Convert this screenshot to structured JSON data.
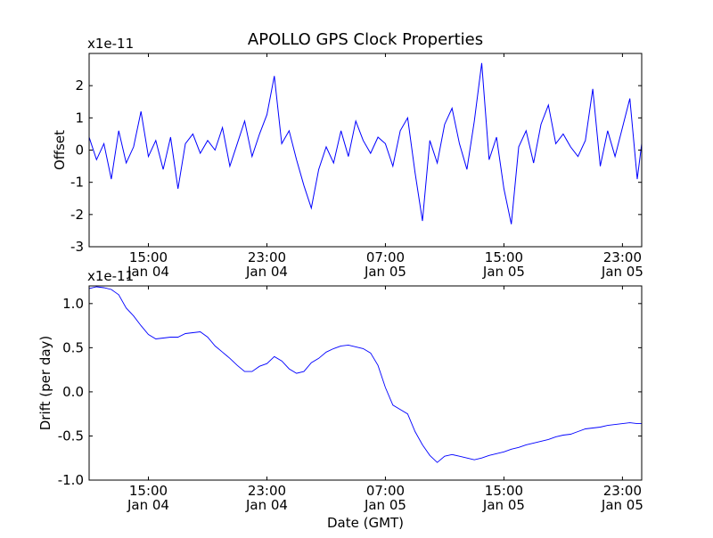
{
  "title": "APOLLO GPS Clock Properties",
  "xlabel": "Date (GMT)",
  "chart_data": [
    {
      "type": "line",
      "ylabel": "Offset",
      "offset_text": "x1e-11",
      "ylim": [
        -3,
        3
      ],
      "yticks": [
        -3,
        -2,
        -1,
        0,
        1,
        2
      ],
      "ytick_labels": [
        "-3",
        "-2",
        "-1",
        "0",
        "1",
        "2"
      ],
      "xlim_hours": [
        11.0,
        48.3
      ],
      "xticks_hours": [
        15,
        23,
        31,
        39,
        47
      ],
      "xtick_labels": [
        [
          "15:00",
          "Jan 04"
        ],
        [
          "23:00",
          "Jan 04"
        ],
        [
          "07:00",
          "Jan 05"
        ],
        [
          "15:00",
          "Jan 05"
        ],
        [
          "23:00",
          "Jan 05"
        ]
      ],
      "color": "#0000ff",
      "grid": false,
      "series": [
        {
          "x_hours": [
            11.0,
            11.5,
            12.0,
            12.5,
            13.0,
            13.5,
            14.0,
            14.5,
            15.0,
            15.5,
            16.0,
            16.5,
            17.0,
            17.5,
            18.0,
            18.5,
            19.0,
            19.5,
            20.0,
            20.5,
            21.0,
            21.5,
            22.0,
            22.5,
            23.0,
            23.5,
            24.0,
            24.5,
            25.0,
            25.5,
            26.0,
            26.5,
            27.0,
            27.5,
            28.0,
            28.5,
            29.0,
            29.5,
            30.0,
            30.5,
            31.0,
            31.5,
            32.0,
            32.5,
            33.0,
            33.5,
            34.0,
            34.5,
            35.0,
            35.5,
            36.0,
            36.5,
            37.0,
            37.5,
            38.0,
            38.5,
            39.0,
            39.5,
            40.0,
            40.5,
            41.0,
            41.5,
            42.0,
            42.5,
            43.0,
            43.5,
            44.0,
            44.5,
            45.0,
            45.5,
            46.0,
            46.5,
            47.0,
            47.5,
            48.0,
            48.3
          ],
          "values": [
            0.4,
            -0.3,
            0.2,
            -0.9,
            0.6,
            -0.4,
            0.1,
            1.2,
            -0.2,
            0.3,
            -0.6,
            0.4,
            -1.2,
            0.2,
            0.5,
            -0.1,
            0.3,
            0.0,
            0.7,
            -0.5,
            0.2,
            0.9,
            -0.2,
            0.5,
            1.1,
            2.3,
            0.2,
            0.6,
            -0.3,
            -1.1,
            -1.8,
            -0.6,
            0.1,
            -0.4,
            0.6,
            -0.2,
            0.9,
            0.3,
            -0.1,
            0.4,
            0.2,
            -0.5,
            0.6,
            1.0,
            -0.7,
            -2.2,
            0.3,
            -0.4,
            0.8,
            1.3,
            0.2,
            -0.6,
            0.9,
            2.7,
            -0.3,
            0.4,
            -1.2,
            -2.3,
            0.1,
            0.6,
            -0.4,
            0.8,
            1.4,
            0.2,
            0.5,
            0.1,
            -0.2,
            0.3,
            1.9,
            -0.5,
            0.6,
            -0.2,
            0.7,
            1.6,
            -0.9,
            0.2
          ]
        }
      ]
    },
    {
      "type": "line",
      "ylabel": "Drift (per day)",
      "offset_text": "x1e-11",
      "ylim": [
        -1.0,
        1.2
      ],
      "yticks": [
        -1.0,
        -0.5,
        0.0,
        0.5,
        1.0
      ],
      "ytick_labels": [
        "-1.0",
        "-0.5",
        "0.0",
        "0.5",
        "1.0"
      ],
      "xlim_hours": [
        11.0,
        48.3
      ],
      "xticks_hours": [
        15,
        23,
        31,
        39,
        47
      ],
      "xtick_labels": [
        [
          "15:00",
          "Jan 04"
        ],
        [
          "23:00",
          "Jan 04"
        ],
        [
          "07:00",
          "Jan 05"
        ],
        [
          "15:00",
          "Jan 05"
        ],
        [
          "23:00",
          "Jan 05"
        ]
      ],
      "color": "#0000ff",
      "grid": false,
      "series": [
        {
          "x_hours": [
            11.0,
            11.5,
            12.0,
            12.5,
            13.0,
            13.5,
            14.0,
            14.5,
            15.0,
            15.5,
            16.0,
            16.5,
            17.0,
            17.5,
            18.0,
            18.5,
            19.0,
            19.5,
            20.0,
            20.5,
            21.0,
            21.5,
            22.0,
            22.5,
            23.0,
            23.5,
            24.0,
            24.5,
            25.0,
            25.5,
            26.0,
            26.5,
            27.0,
            27.5,
            28.0,
            28.5,
            29.0,
            29.5,
            30.0,
            30.5,
            31.0,
            31.5,
            32.0,
            32.5,
            33.0,
            33.5,
            34.0,
            34.5,
            35.0,
            35.5,
            36.0,
            36.5,
            37.0,
            37.5,
            38.0,
            38.5,
            39.0,
            39.5,
            40.0,
            40.5,
            41.0,
            41.5,
            42.0,
            42.5,
            43.0,
            43.5,
            44.0,
            44.5,
            45.0,
            45.5,
            46.0,
            46.5,
            47.0,
            47.5,
            48.0,
            48.3
          ],
          "values": [
            1.17,
            1.19,
            1.18,
            1.16,
            1.1,
            0.95,
            0.86,
            0.75,
            0.65,
            0.6,
            0.61,
            0.62,
            0.62,
            0.66,
            0.67,
            0.68,
            0.62,
            0.52,
            0.45,
            0.38,
            0.3,
            0.23,
            0.23,
            0.29,
            0.32,
            0.4,
            0.35,
            0.26,
            0.21,
            0.23,
            0.33,
            0.38,
            0.45,
            0.49,
            0.52,
            0.53,
            0.51,
            0.49,
            0.44,
            0.3,
            0.05,
            -0.15,
            -0.2,
            -0.25,
            -0.45,
            -0.6,
            -0.72,
            -0.8,
            -0.73,
            -0.71,
            -0.73,
            -0.75,
            -0.77,
            -0.75,
            -0.72,
            -0.7,
            -0.68,
            -0.65,
            -0.63,
            -0.6,
            -0.58,
            -0.56,
            -0.54,
            -0.51,
            -0.49,
            -0.48,
            -0.45,
            -0.42,
            -0.41,
            -0.4,
            -0.38,
            -0.37,
            -0.36,
            -0.35,
            -0.36,
            -0.36
          ]
        }
      ]
    }
  ]
}
